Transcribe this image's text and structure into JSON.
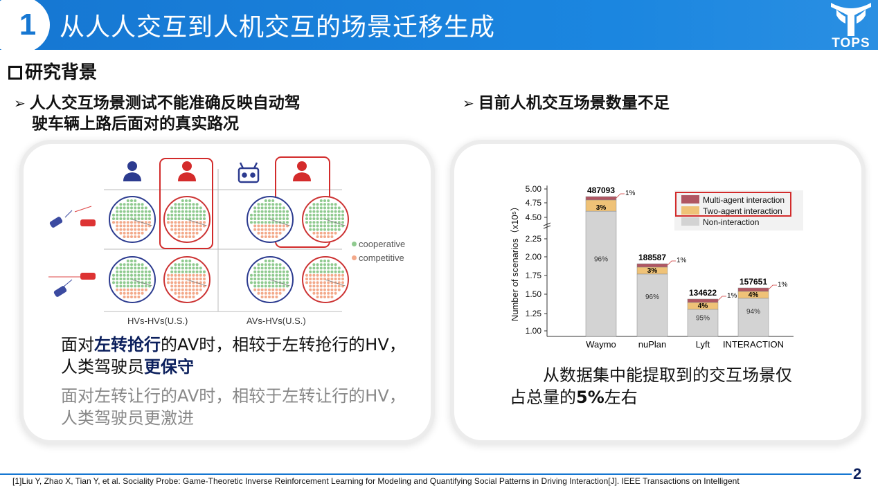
{
  "header": {
    "number": "1",
    "title": "从人人交互到人机交互的场景迁移生成",
    "logo_text": "TOPS"
  },
  "section": {
    "title": "研究背景"
  },
  "left": {
    "bullet_line1": "人人交互场景测试不能准确反映自动驾",
    "bullet_line2": "驶车辆上路后面对的真实路况",
    "legend_coop": "cooperative",
    "legend_comp": "competitive",
    "group1": "HVs-HVs(U.S.)",
    "group2": "AVs-HVs(U.S.)",
    "text1": {
      "p1": "面对",
      "h1": "左转抢行",
      "p2": "的AV时，相较于左转抢行的HV，人类驾驶员",
      "h2": "更保守"
    },
    "text2": "面对左转让行的AV时，相较于左转让行的HV，人类驾驶员更激进"
  },
  "right": {
    "bullet": "目前人机交互场景数量不足",
    "text": {
      "p1": "从数据集中能提取到的交互场景仅占总量的",
      "h1": "5%",
      "p2": "左右"
    }
  },
  "chart_data": {
    "type": "bar",
    "ylabel": "Number of scenarios（x10⁵）",
    "yticks": [
      "1.00",
      "1.25",
      "1.50",
      "1.75",
      "2.00",
      "2.25",
      "4.50",
      "4.75",
      "5.00"
    ],
    "categories": [
      "Waymo",
      "nuPlan",
      "Lyft",
      "INTERACTION"
    ],
    "totals": [
      "487093",
      "188587",
      "134622",
      "157651"
    ],
    "series": [
      {
        "name": "Non-interaction",
        "labels": [
          "96%",
          "96%",
          "95%",
          "94%"
        ],
        "color": "#d3d3d3"
      },
      {
        "name": "Two-agent interaction",
        "labels": [
          "3%",
          "3%",
          "4%",
          "4%"
        ],
        "color": "#efc277"
      },
      {
        "name": "Multi-agent interaction",
        "labels": [
          "1%",
          "1%",
          "1%",
          "1%"
        ],
        "color": "#b05662"
      }
    ]
  },
  "footer": {
    "reference": "[1]Liu Y, Zhao X, Tian Y, et al. Sociality Probe: Game-Theoretic Inverse Reinforcement Learning for Modeling and Quantifying Social Patterns in Driving Interaction[J]. IEEE Transactions on Intelligent",
    "page": "2"
  },
  "colors": {
    "brand_blue": "#1677d2",
    "highlight_red": "#d22b2b",
    "navy": "#0b1f5c"
  },
  "icons": [
    "person-icon",
    "robot-icon",
    "car-icon"
  ]
}
